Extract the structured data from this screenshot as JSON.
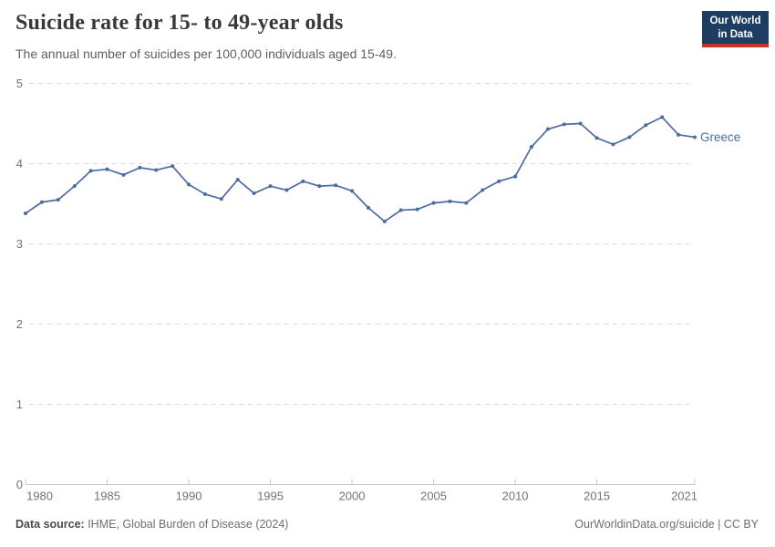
{
  "chart_data": {
    "type": "line",
    "title": "Suicide rate for 15- to 49-year olds",
    "subtitle": "The annual number of suicides per 100,000 individuals aged 15-49.",
    "xlabel": "",
    "ylabel": "",
    "ylim": [
      0,
      5
    ],
    "yticks": [
      0,
      1,
      2,
      3,
      4,
      5
    ],
    "xticks": [
      1980,
      1985,
      1990,
      1995,
      2000,
      2005,
      2010,
      2015,
      2021
    ],
    "grid": "horizontal-dashed",
    "legend_position": "end-of-line",
    "series": [
      {
        "name": "Greece",
        "color": "#4C6B9E",
        "x": [
          1980,
          1981,
          1982,
          1983,
          1984,
          1985,
          1986,
          1987,
          1988,
          1989,
          1990,
          1991,
          1992,
          1993,
          1994,
          1995,
          1996,
          1997,
          1998,
          1999,
          2000,
          2001,
          2002,
          2003,
          2004,
          2005,
          2006,
          2007,
          2008,
          2009,
          2010,
          2011,
          2012,
          2013,
          2014,
          2015,
          2016,
          2017,
          2018,
          2019,
          2020,
          2021
        ],
        "values": [
          3.38,
          3.52,
          3.55,
          3.72,
          3.91,
          3.93,
          3.86,
          3.95,
          3.92,
          3.97,
          3.74,
          3.62,
          3.56,
          3.8,
          3.63,
          3.72,
          3.67,
          3.78,
          3.72,
          3.73,
          3.66,
          3.45,
          3.28,
          3.42,
          3.43,
          3.51,
          3.53,
          3.51,
          3.67,
          3.78,
          3.84,
          4.21,
          4.43,
          4.49,
          4.5,
          4.32,
          4.24,
          4.33,
          4.48,
          4.58,
          4.36,
          4.33
        ]
      }
    ],
    "colors": {
      "line": "#4C6B9E",
      "grid": "#dcdcdc",
      "axis": "#c8c8c8",
      "tick_label": "#737373"
    }
  },
  "logo": {
    "line1": "Our World",
    "line2": "in Data"
  },
  "footer": {
    "datasource_label": "Data source:",
    "datasource_text": " IHME, Global Burden of Disease (2024)",
    "credit": "OurWorldinData.org/suicide | CC BY"
  }
}
